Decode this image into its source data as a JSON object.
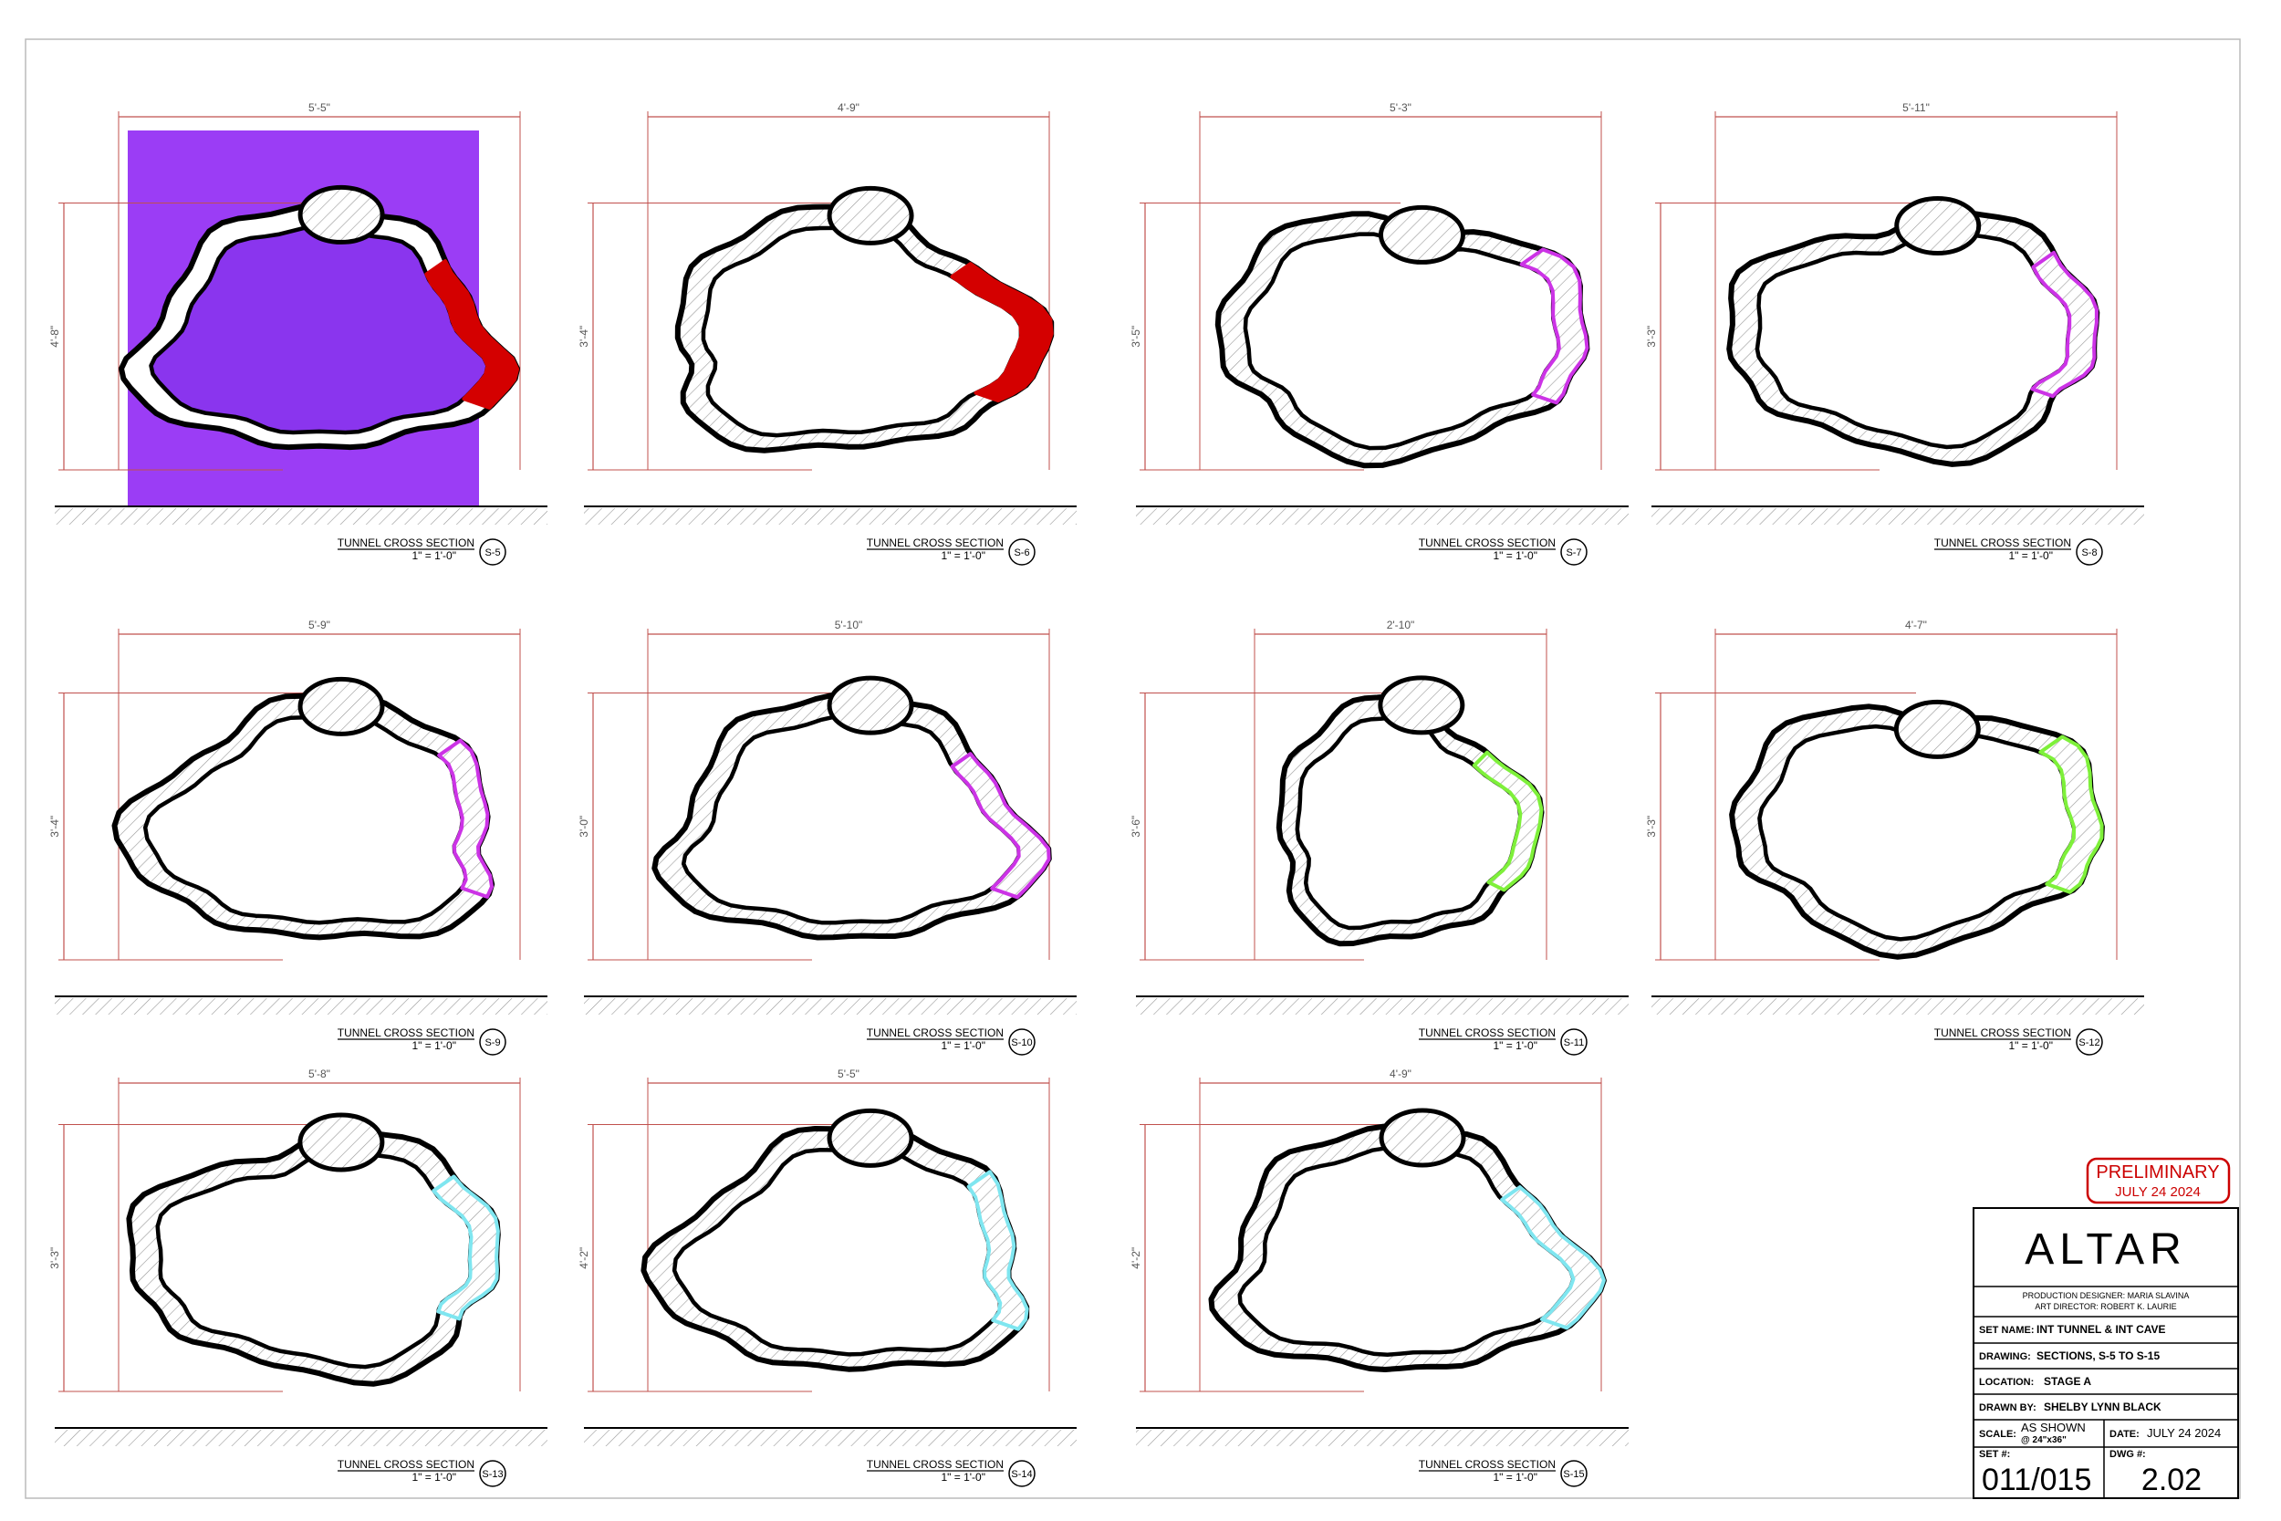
{
  "sections": [
    {
      "id": "S-5",
      "title": "TUNNEL CROSS SECTION",
      "scale": "1\" = 1'-0\"",
      "width": "5'-5\"",
      "height": "4'-8\""
    },
    {
      "id": "S-6",
      "title": "TUNNEL CROSS SECTION",
      "scale": "1\" = 1'-0\"",
      "width": "4'-9\"",
      "height": "3'-4\""
    },
    {
      "id": "S-7",
      "title": "TUNNEL CROSS SECTION",
      "scale": "1\" = 1'-0\"",
      "width": "5'-3\"",
      "height": "3'-5\""
    },
    {
      "id": "S-8",
      "title": "TUNNEL CROSS SECTION",
      "scale": "1\" = 1'-0\"",
      "width": "5'-11\"",
      "height": "3'-3\""
    },
    {
      "id": "S-9",
      "title": "TUNNEL CROSS SECTION",
      "scale": "1\" = 1'-0\"",
      "width": "5'-9\"",
      "height": "3'-4\""
    },
    {
      "id": "S-10",
      "title": "TUNNEL CROSS SECTION",
      "scale": "1\" = 1'-0\"",
      "width": "5'-10\"",
      "height": "3'-0\""
    },
    {
      "id": "S-11",
      "title": "TUNNEL CROSS SECTION",
      "scale": "1\" = 1'-0\"",
      "width": "2'-10\"",
      "height": "3'-6\""
    },
    {
      "id": "S-12",
      "title": "TUNNEL CROSS SECTION",
      "scale": "1\" = 1'-0\"",
      "width": "4'-7\"",
      "height": "3'-3\""
    },
    {
      "id": "S-13",
      "title": "TUNNEL CROSS SECTION",
      "scale": "1\" = 1'-0\"",
      "width": "5'-8\"",
      "height": "3'-3\""
    },
    {
      "id": "S-14",
      "title": "TUNNEL CROSS SECTION",
      "scale": "1\" = 1'-0\"",
      "width": "5'-5\"",
      "height": "4'-2\""
    },
    {
      "id": "S-15",
      "title": "TUNNEL CROSS SECTION",
      "scale": "1\" = 1'-0\"",
      "width": "4'-9\"",
      "height": "4'-2\""
    }
  ],
  "stamp": {
    "title": "PRELIMINARY",
    "date": "JULY 24 2024"
  },
  "title_block": {
    "logo": "ALTAR",
    "credits": [
      "PRODUCTION DESIGNER: MARIA SLAVINA",
      "ART DIRECTOR: ROBERT K. LAURIE"
    ],
    "set_name": {
      "label": "SET NAME:",
      "value": "INT TUNNEL & INT CAVE"
    },
    "drawing": {
      "label": "DRAWING:",
      "value": "SECTIONS, S-5 TO S-15"
    },
    "location": {
      "label": "LOCATION:",
      "value": "STAGE A"
    },
    "drawn_by": {
      "label": "DRAWN BY:",
      "value": "SHELBY LYNN BLACK"
    },
    "scale": {
      "label": "SCALE:",
      "value": [
        "AS SHOWN",
        "@ 24\"x36\""
      ]
    },
    "date": {
      "label": "DATE:",
      "value": "JULY 24 2024"
    },
    "set_number": {
      "label": "SET #:",
      "value": "011/015"
    },
    "dwg_number": {
      "label": "DWG #:",
      "value": "2.02"
    }
  }
}
